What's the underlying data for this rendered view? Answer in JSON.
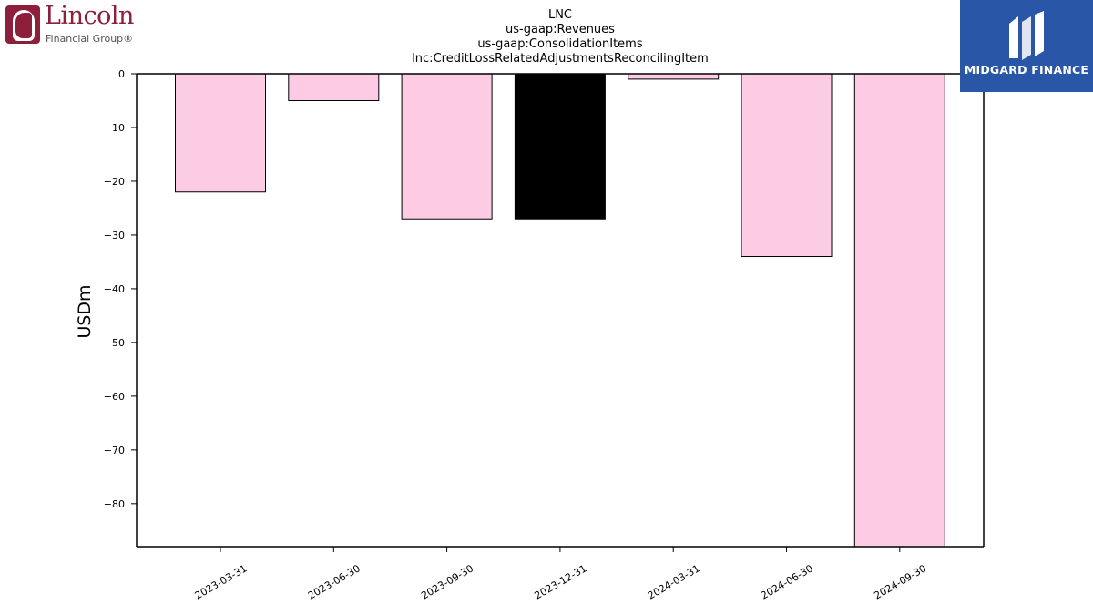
{
  "logos": {
    "left": {
      "name": "Lincoln",
      "subtitle": "Financial Group®",
      "color": "#8d1f3a"
    },
    "right": {
      "name": "MIDGARD FINANCE",
      "background": "#2a56a8"
    }
  },
  "chart_data": {
    "type": "bar",
    "title_lines": [
      "LNC",
      "us-gaap:Revenues",
      "us-gaap:ConsolidationItems",
      "lnc:CreditLossRelatedAdjustmentsReconcilingItem"
    ],
    "xlabel": "",
    "ylabel": "USDm",
    "categories": [
      "2023-03-31",
      "2023-06-30",
      "2023-09-30",
      "2023-12-31",
      "2024-03-31",
      "2024-06-30",
      "2024-09-30"
    ],
    "values": [
      -22,
      -5,
      -27,
      -27,
      -1,
      -34,
      -88
    ],
    "bar_colors": [
      "#fccbe4",
      "#fccbe4",
      "#fccbe4",
      "#000000",
      "#fccbe4",
      "#fccbe4",
      "#fccbe4"
    ],
    "yticks": [
      0,
      -10,
      -20,
      -30,
      -40,
      -50,
      -60,
      -70,
      -80
    ],
    "ytick_labels": [
      "0",
      "−10",
      "−20",
      "−30",
      "−40",
      "−50",
      "−60",
      "−70",
      "−80"
    ],
    "ylim": [
      -88,
      0
    ],
    "grid": false,
    "legend": "none"
  }
}
